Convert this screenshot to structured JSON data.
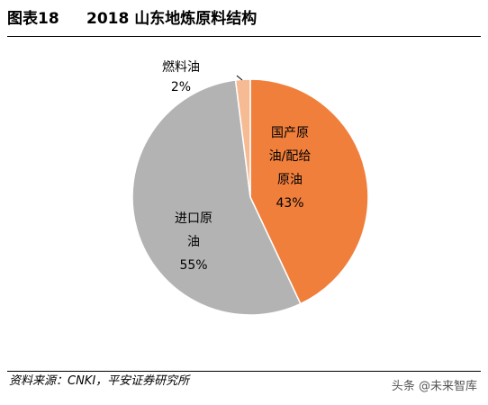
{
  "header": {
    "figure_label": "图表18",
    "title": "2018 山东地炼原料结构"
  },
  "chart_data": {
    "type": "pie",
    "title": "2018 山东地炼原料结构",
    "slices": [
      {
        "label_lines": [
          "国产原",
          "油/配给",
          "原油"
        ],
        "percent_label": "43%",
        "value": 43,
        "color": "#F07F3C"
      },
      {
        "label_lines": [
          "进口原",
          "油"
        ],
        "percent_label": "55%",
        "value": 55,
        "color": "#B3B3B3"
      },
      {
        "label_lines": [
          "燃料油"
        ],
        "percent_label": "2%",
        "value": 2,
        "color": "#F6BB93"
      }
    ],
    "legend": "none"
  },
  "footer": {
    "source": "资料来源：CNKI，平安证券研究所",
    "watermark": "头条 @未来智库"
  }
}
